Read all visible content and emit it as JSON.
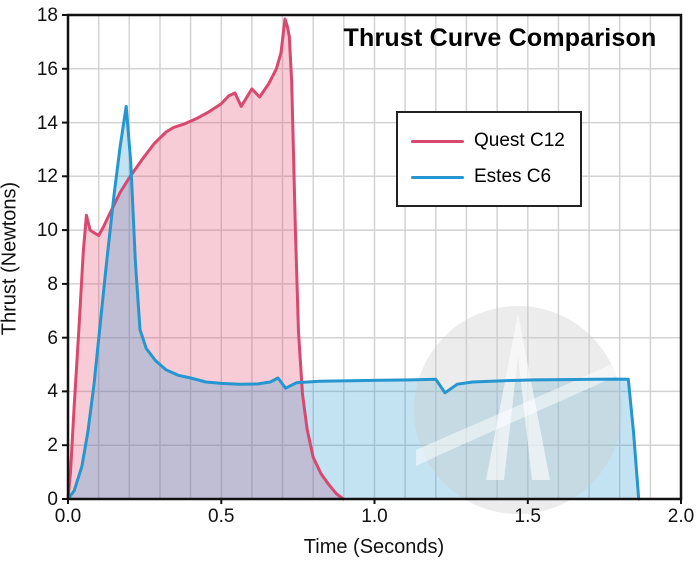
{
  "chart_data": {
    "type": "area",
    "title": "Thrust Curve Comparison",
    "xlabel": "Time (Seconds)",
    "ylabel": "Thrust (Newtons)",
    "xlim": [
      0,
      2.0
    ],
    "ylim": [
      0,
      18
    ],
    "x_ticks": [
      0.0,
      0.5,
      1.0,
      1.5,
      2.0
    ],
    "x_tick_labels": [
      "0.0",
      "0.5",
      "1.0",
      "1.5",
      "2.0"
    ],
    "y_ticks": [
      0,
      2,
      4,
      6,
      8,
      10,
      12,
      14,
      16,
      18
    ],
    "y_tick_labels": [
      "0",
      "2",
      "4",
      "6",
      "8",
      "10",
      "12",
      "14",
      "16",
      "18"
    ],
    "x_minor_grid_step": 0.1,
    "y_grid_step": 2,
    "grid": true,
    "grid_color": "#d3d3d3",
    "frame_color": "#111111",
    "legend_position": "upper right",
    "series": [
      {
        "name": "Quest C12",
        "line_color": "#d9486e",
        "fill_color": "rgba(230,73,112,0.28)",
        "points": [
          [
            0,
            0
          ],
          [
            0.008,
            1.0
          ],
          [
            0.02,
            3.4
          ],
          [
            0.035,
            6.2
          ],
          [
            0.05,
            9.2
          ],
          [
            0.06,
            10.55
          ],
          [
            0.072,
            10.0
          ],
          [
            0.085,
            9.9
          ],
          [
            0.1,
            9.8
          ],
          [
            0.115,
            10.1
          ],
          [
            0.14,
            10.7
          ],
          [
            0.17,
            11.4
          ],
          [
            0.2,
            11.95
          ],
          [
            0.24,
            12.6
          ],
          [
            0.28,
            13.2
          ],
          [
            0.32,
            13.65
          ],
          [
            0.345,
            13.82
          ],
          [
            0.38,
            13.95
          ],
          [
            0.42,
            14.15
          ],
          [
            0.46,
            14.4
          ],
          [
            0.5,
            14.7
          ],
          [
            0.525,
            15.0
          ],
          [
            0.545,
            15.1
          ],
          [
            0.565,
            14.6
          ],
          [
            0.6,
            15.25
          ],
          [
            0.625,
            14.95
          ],
          [
            0.655,
            15.45
          ],
          [
            0.68,
            16.0
          ],
          [
            0.695,
            16.6
          ],
          [
            0.708,
            17.85
          ],
          [
            0.716,
            17.55
          ],
          [
            0.722,
            17.2
          ],
          [
            0.73,
            15.5
          ],
          [
            0.742,
            10.0
          ],
          [
            0.752,
            6.2
          ],
          [
            0.765,
            3.9
          ],
          [
            0.78,
            2.6
          ],
          [
            0.8,
            1.55
          ],
          [
            0.825,
            0.95
          ],
          [
            0.85,
            0.55
          ],
          [
            0.875,
            0.2
          ],
          [
            0.898,
            0
          ]
        ]
      },
      {
        "name": "Estes C6",
        "line_color": "#2596cf",
        "fill_color": "rgba(37,150,207,0.27)",
        "points": [
          [
            0,
            0
          ],
          [
            0.02,
            0.3
          ],
          [
            0.045,
            1.2
          ],
          [
            0.065,
            2.5
          ],
          [
            0.085,
            4.3
          ],
          [
            0.105,
            6.5
          ],
          [
            0.125,
            8.7
          ],
          [
            0.15,
            11.3
          ],
          [
            0.17,
            13.1
          ],
          [
            0.19,
            14.6
          ],
          [
            0.205,
            12.5
          ],
          [
            0.22,
            8.8
          ],
          [
            0.235,
            6.3
          ],
          [
            0.255,
            5.6
          ],
          [
            0.285,
            5.15
          ],
          [
            0.32,
            4.8
          ],
          [
            0.36,
            4.6
          ],
          [
            0.4,
            4.5
          ],
          [
            0.45,
            4.35
          ],
          [
            0.5,
            4.3
          ],
          [
            0.56,
            4.27
          ],
          [
            0.62,
            4.28
          ],
          [
            0.66,
            4.35
          ],
          [
            0.685,
            4.5
          ],
          [
            0.71,
            4.12
          ],
          [
            0.745,
            4.32
          ],
          [
            0.82,
            4.38
          ],
          [
            0.92,
            4.4
          ],
          [
            1.02,
            4.42
          ],
          [
            1.12,
            4.43
          ],
          [
            1.2,
            4.45
          ],
          [
            1.23,
            3.95
          ],
          [
            1.27,
            4.27
          ],
          [
            1.32,
            4.35
          ],
          [
            1.42,
            4.4
          ],
          [
            1.52,
            4.43
          ],
          [
            1.62,
            4.44
          ],
          [
            1.72,
            4.45
          ],
          [
            1.8,
            4.46
          ],
          [
            1.828,
            4.45
          ],
          [
            1.845,
            2.5
          ],
          [
            1.862,
            0
          ]
        ]
      }
    ]
  },
  "legend": {
    "items": [
      {
        "label": "Quest C12",
        "color": "#d9486e"
      },
      {
        "label": "Estes C6",
        "color": "#2596cf"
      }
    ]
  },
  "watermark": {
    "name": "rocket-logo-watermark",
    "circle_color": "#c9c9c9",
    "glyph_color": "#ffffff"
  }
}
